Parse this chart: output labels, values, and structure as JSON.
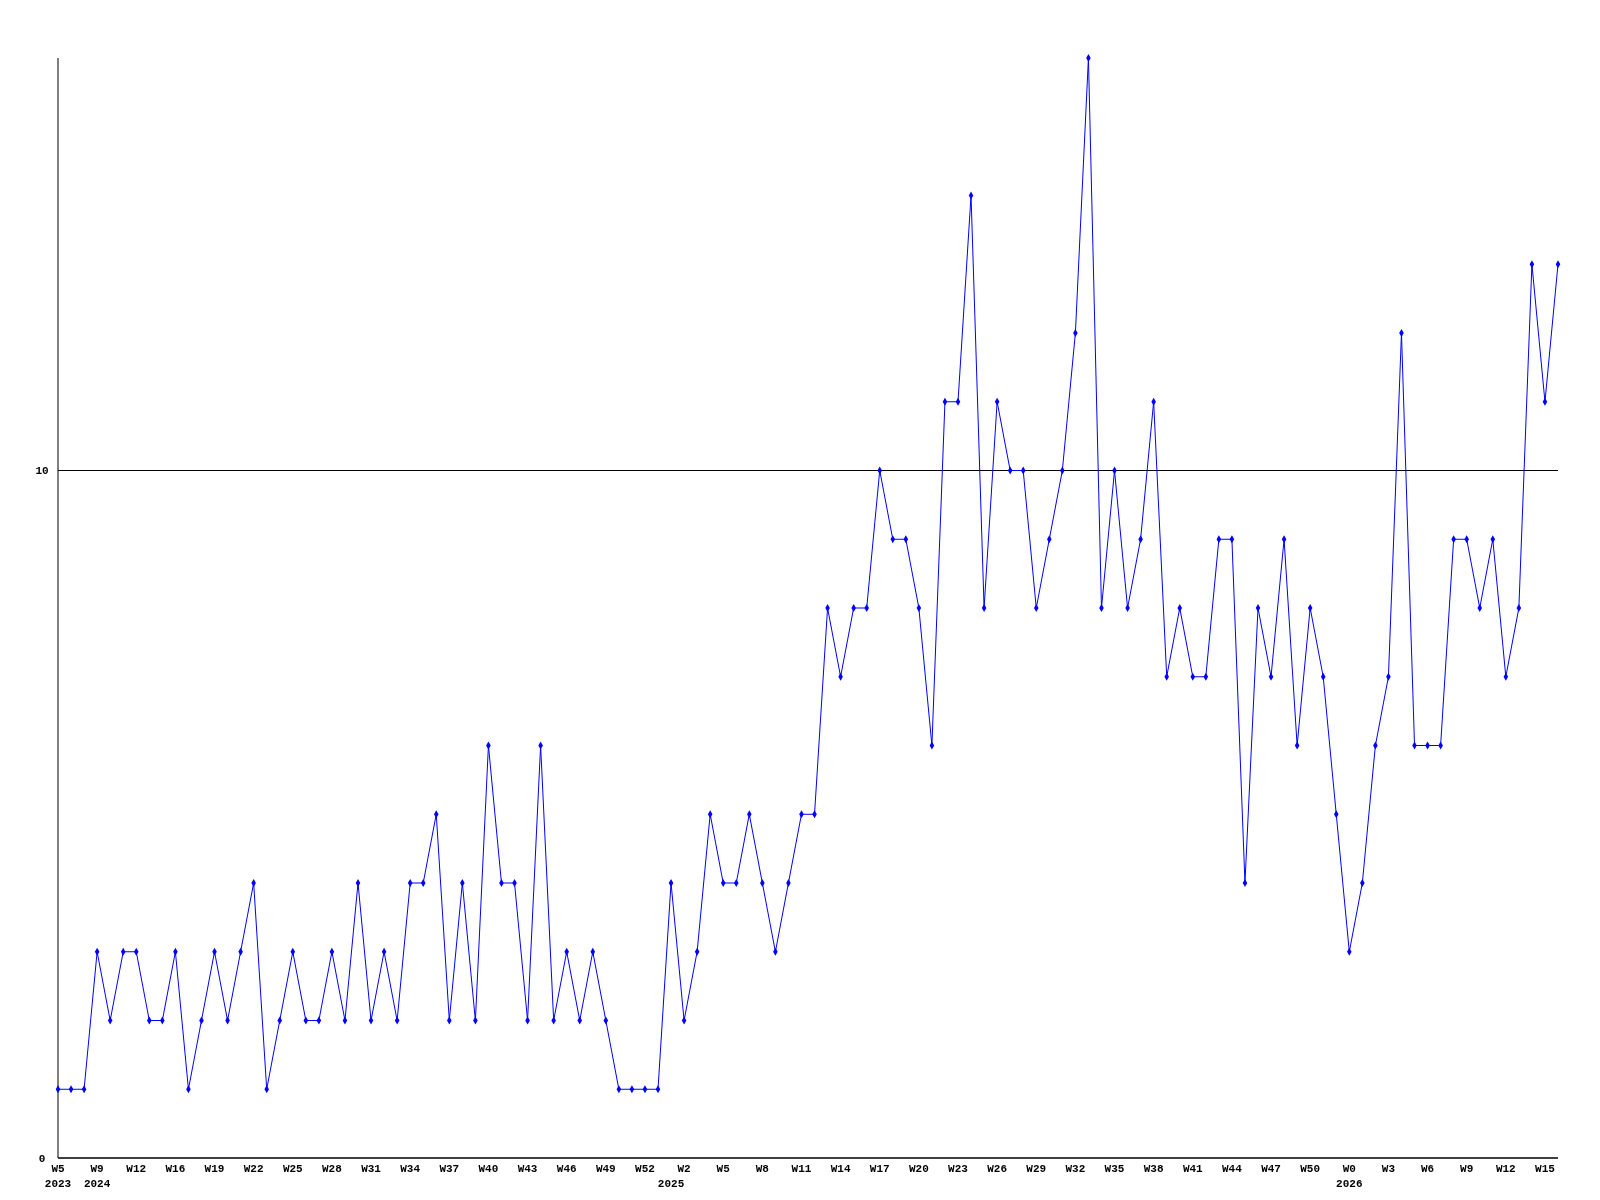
{
  "chart_data": {
    "type": "line",
    "categories": [
      "W5\n2023",
      null,
      null,
      "W9\n2024",
      null,
      null,
      "W12",
      null,
      null,
      "W16",
      null,
      null,
      "W19",
      null,
      null,
      "W22",
      null,
      null,
      "W25",
      null,
      null,
      "W28",
      null,
      null,
      "W31",
      null,
      null,
      "W34",
      null,
      null,
      "W37",
      null,
      null,
      "W40",
      null,
      null,
      "W43",
      null,
      null,
      "W46",
      null,
      null,
      "W49",
      null,
      null,
      "W52",
      null,
      "\n2025",
      "W2",
      null,
      null,
      "W5",
      null,
      null,
      "W8",
      null,
      null,
      "W11",
      null,
      null,
      "W14",
      null,
      null,
      "W17",
      null,
      null,
      "W20",
      null,
      null,
      "W23",
      null,
      null,
      "W26",
      null,
      null,
      "W29",
      null,
      null,
      "W32",
      null,
      null,
      "W35",
      null,
      null,
      "W38",
      null,
      null,
      "W41",
      null,
      null,
      "W44",
      null,
      null,
      "W47",
      null,
      null,
      "W50",
      null,
      null,
      "W0\n2026",
      null,
      null,
      "W3",
      null,
      null,
      "W6",
      null,
      null,
      "W9",
      null,
      null,
      "W12",
      null,
      null,
      "W15",
      null
    ],
    "series": [
      {
        "color": "#0000ff",
        "values": [
          1,
          1,
          1,
          3,
          2,
          3,
          3,
          2,
          2,
          3,
          1,
          2,
          3,
          2,
          3,
          4,
          1,
          2,
          3,
          2,
          2,
          3,
          2,
          4,
          2,
          3,
          2,
          4,
          4,
          5,
          2,
          4,
          2,
          6,
          4,
          4,
          2,
          6,
          2,
          3,
          2,
          3,
          2,
          1,
          1,
          1,
          1,
          4,
          2,
          3,
          5,
          4,
          4,
          5,
          4,
          3,
          4,
          5,
          5,
          8,
          7,
          8,
          8,
          10,
          9,
          9,
          8,
          6,
          11,
          11,
          14,
          8,
          11,
          10,
          10,
          8,
          9,
          10,
          12,
          16,
          8,
          10,
          8,
          9,
          11,
          7,
          8,
          7,
          7,
          9,
          9,
          4,
          8,
          7,
          9,
          6,
          8,
          7,
          5,
          3,
          4,
          6,
          7,
          12,
          6,
          6,
          6,
          9,
          9,
          8,
          9,
          7,
          8,
          13,
          11,
          13
        ]
      }
    ],
    "ylim": [
      0,
      16
    ],
    "yticks": [
      0,
      10
    ],
    "grid": "y",
    "marker": "diamond",
    "line_style": "solid"
  }
}
